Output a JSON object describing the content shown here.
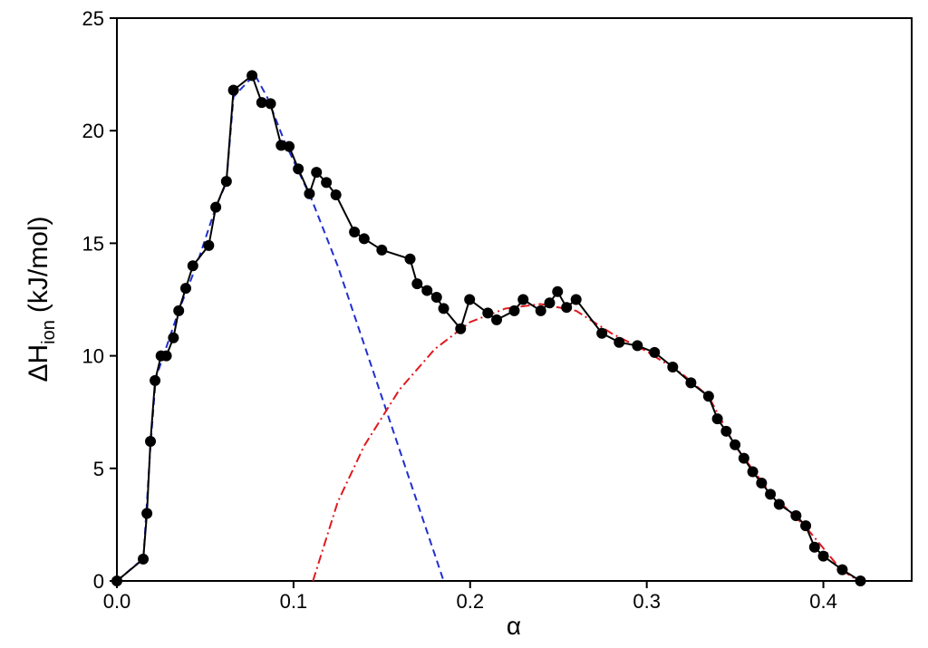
{
  "chart_data": {
    "type": "line",
    "xlabel": "α",
    "ylabel": {
      "main": "ΔH",
      "sub": "ion",
      "unit": "(kJ/mol)"
    },
    "xlim": [
      0,
      0.45
    ],
    "ylim": [
      0,
      25
    ],
    "xticks": [
      {
        "value": 0,
        "label": "0.0"
      },
      0.1,
      0.2,
      0.3,
      0.4
    ],
    "yticks": [
      0,
      5,
      10,
      15,
      20,
      25
    ],
    "grid": false,
    "series": [
      {
        "color": "#1f2fd0",
        "style": "dashed",
        "markers": false,
        "x": [
          0,
          0.015,
          0.019,
          0.022,
          0.035,
          0.045,
          0.056,
          0.062,
          0.066,
          0.078,
          0.085,
          0.095,
          0.11,
          0.125,
          0.14,
          0.155,
          0.17,
          0.185
        ],
        "values": [
          0,
          1.0,
          6,
          9,
          12,
          14,
          16.6,
          17.7,
          21.5,
          22.5,
          21.5,
          19.5,
          17,
          14,
          10.5,
          7,
          3.5,
          0
        ]
      },
      {
        "color": "#e0191e",
        "style": "dashdot",
        "markers": false,
        "x": [
          0.111,
          0.125,
          0.14,
          0.16,
          0.18,
          0.2,
          0.22,
          0.24,
          0.26,
          0.28,
          0.3,
          0.32,
          0.335,
          0.35,
          0.37,
          0.39,
          0.41,
          0.42
        ],
        "values": [
          0,
          3.5,
          6,
          8.5,
          10.3,
          11.5,
          12.1,
          12.3,
          12.0,
          11.0,
          10.2,
          9.2,
          8.2,
          6.0,
          3.9,
          2.4,
          0.5,
          0
        ]
      },
      {
        "color": "#000000",
        "style": "solid",
        "markers": true,
        "x": [
          0,
          0.0149,
          0.017,
          0.019,
          0.0216,
          0.025,
          0.028,
          0.032,
          0.035,
          0.039,
          0.043,
          0.052,
          0.056,
          0.062,
          0.066,
          0.0765,
          0.082,
          0.087,
          0.093,
          0.0975,
          0.1027,
          0.109,
          0.113,
          0.1186,
          0.124,
          0.1345,
          0.14,
          0.15,
          0.166,
          0.17,
          0.1756,
          0.181,
          0.185,
          0.1946,
          0.1997,
          0.21,
          0.215,
          0.225,
          0.23,
          0.24,
          0.245,
          0.2495,
          0.2546,
          0.26,
          0.2746,
          0.2844,
          0.2947,
          0.3044,
          0.3147,
          0.325,
          0.335,
          0.34,
          0.345,
          0.35,
          0.355,
          0.36,
          0.365,
          0.37,
          0.375,
          0.3845,
          0.39,
          0.395,
          0.4,
          0.4107,
          0.421
        ],
        "values": [
          0,
          0.97,
          3.0,
          6.2,
          8.9,
          10.0,
          10.0,
          10.8,
          12.0,
          13.0,
          14.0,
          14.9,
          16.6,
          17.75,
          21.8,
          22.45,
          21.25,
          21.2,
          19.35,
          19.3,
          18.3,
          17.2,
          18.15,
          17.7,
          17.15,
          15.5,
          15.2,
          14.7,
          14.3,
          13.2,
          12.9,
          12.6,
          12.1,
          11.2,
          12.5,
          11.9,
          11.6,
          12.0,
          12.5,
          12.0,
          12.35,
          12.85,
          12.15,
          12.5,
          11.0,
          10.6,
          10.45,
          10.15,
          9.5,
          8.8,
          8.2,
          7.2,
          6.65,
          6.05,
          5.45,
          4.85,
          4.35,
          3.85,
          3.4,
          2.9,
          2.45,
          1.5,
          1.1,
          0.5,
          0
        ]
      }
    ]
  }
}
